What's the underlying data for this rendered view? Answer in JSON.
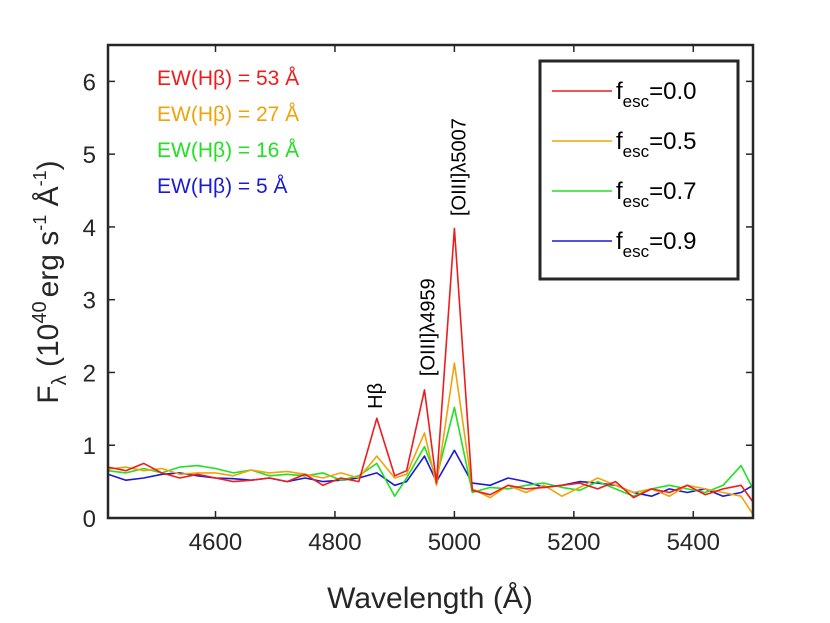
{
  "chart_data": {
    "type": "line",
    "xlabel": "Wavelength (Å)",
    "ylabel": {
      "base": "F",
      "base_sub": "λ",
      "open": " (10",
      "sup1": "40",
      "mid": "erg s",
      "sup2": "-1",
      "mid2": " Å",
      "sup3": "-1",
      "close": ")"
    },
    "xlim": [
      4420,
      5500
    ],
    "ylim": [
      0,
      6.5
    ],
    "xticks": [
      4600,
      4800,
      5000,
      5200,
      5400
    ],
    "yticks": [
      0,
      1,
      2,
      3,
      4,
      5,
      6
    ],
    "x": [
      4420,
      4450,
      4480,
      4510,
      4540,
      4570,
      4600,
      4630,
      4660,
      4690,
      4720,
      4750,
      4780,
      4810,
      4840,
      4870,
      4900,
      4920,
      4950,
      4970,
      5000,
      5030,
      5060,
      5090,
      5120,
      5150,
      5180,
      5210,
      5240,
      5270,
      5300,
      5330,
      5360,
      5390,
      5420,
      5450,
      5480,
      5500
    ],
    "series": [
      {
        "name": "fesc=0.0",
        "name_base": "f",
        "name_sub": "esc",
        "name_value": "=0.0",
        "color": "#ee1c1c",
        "values": [
          0.7,
          0.65,
          0.75,
          0.62,
          0.55,
          0.6,
          0.55,
          0.5,
          0.52,
          0.55,
          0.5,
          0.6,
          0.45,
          0.55,
          0.5,
          1.37,
          0.58,
          0.65,
          1.76,
          0.48,
          3.98,
          0.38,
          0.32,
          0.45,
          0.4,
          0.42,
          0.45,
          0.48,
          0.4,
          0.5,
          0.28,
          0.4,
          0.35,
          0.45,
          0.32,
          0.4,
          0.45,
          0.22
        ]
      },
      {
        "name": "fesc=0.5",
        "name_base": "f",
        "name_sub": "esc",
        "name_value": "=0.5",
        "color": "#f0a30a",
        "values": [
          0.67,
          0.7,
          0.65,
          0.68,
          0.6,
          0.62,
          0.62,
          0.58,
          0.66,
          0.62,
          0.64,
          0.6,
          0.55,
          0.62,
          0.55,
          0.85,
          0.55,
          0.6,
          1.17,
          0.45,
          2.13,
          0.4,
          0.28,
          0.45,
          0.35,
          0.45,
          0.3,
          0.42,
          0.55,
          0.45,
          0.35,
          0.4,
          0.3,
          0.45,
          0.4,
          0.35,
          0.3,
          0.05
        ]
      },
      {
        "name": "fesc=0.7",
        "name_base": "f",
        "name_sub": "esc",
        "name_value": "=0.7",
        "color": "#22e022",
        "values": [
          0.65,
          0.62,
          0.68,
          0.62,
          0.7,
          0.72,
          0.68,
          0.62,
          0.66,
          0.58,
          0.6,
          0.58,
          0.62,
          0.52,
          0.58,
          0.75,
          0.3,
          0.55,
          0.98,
          0.55,
          1.52,
          0.35,
          0.42,
          0.4,
          0.45,
          0.48,
          0.42,
          0.38,
          0.5,
          0.4,
          0.3,
          0.4,
          0.45,
          0.4,
          0.35,
          0.45,
          0.72,
          0.4
        ]
      },
      {
        "name": "fesc=0.9",
        "name_base": "f",
        "name_sub": "esc",
        "name_value": "=0.9",
        "color": "#1a1ad6",
        "values": [
          0.6,
          0.52,
          0.55,
          0.6,
          0.62,
          0.58,
          0.55,
          0.54,
          0.52,
          0.55,
          0.5,
          0.55,
          0.5,
          0.52,
          0.55,
          0.62,
          0.45,
          0.5,
          0.85,
          0.5,
          0.93,
          0.48,
          0.45,
          0.55,
          0.5,
          0.42,
          0.45,
          0.5,
          0.48,
          0.45,
          0.35,
          0.3,
          0.4,
          0.35,
          0.4,
          0.3,
          0.35,
          0.45
        ]
      }
    ],
    "annotations": [
      {
        "label": "Hβ",
        "x": 4867,
        "y": 1.5
      },
      {
        "label": "[OIII]λ4959",
        "x": 4955,
        "y": 1.95
      },
      {
        "label": "[OIII]λ5007",
        "x": 5007,
        "y": 4.15
      }
    ],
    "ew_labels": [
      {
        "text": "EW(Hβ) = 53 Å",
        "color": "#ee1c1c"
      },
      {
        "text": "EW(Hβ) = 27 Å",
        "color": "#f0a30a"
      },
      {
        "text": "EW(Hβ) = 16 Å",
        "color": "#22e022"
      },
      {
        "text": "EW(Hβ) = 5 Å",
        "color": "#1a1ad6"
      }
    ],
    "legend_placement": "top-right",
    "grid": false
  }
}
